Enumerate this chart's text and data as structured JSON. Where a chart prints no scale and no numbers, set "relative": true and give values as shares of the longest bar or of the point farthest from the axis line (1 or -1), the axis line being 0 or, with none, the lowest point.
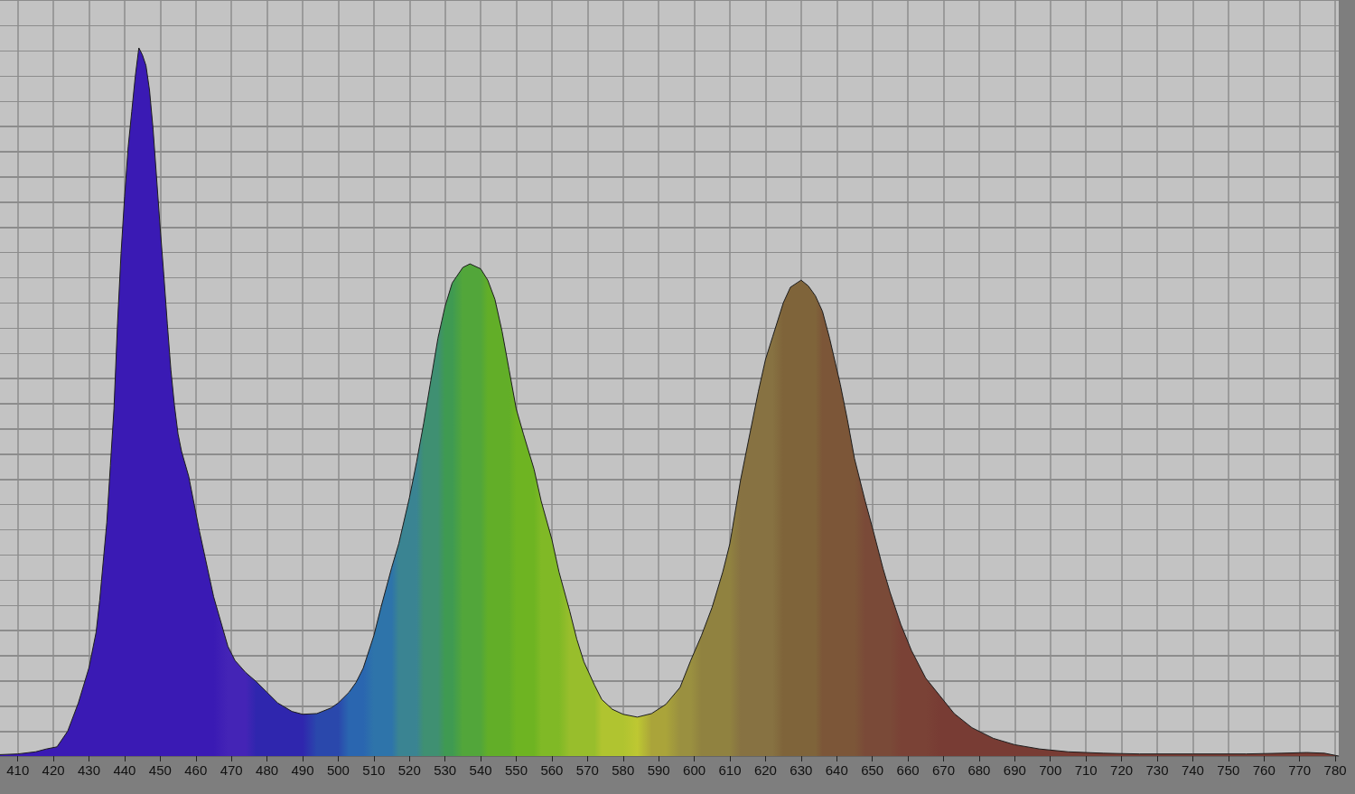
{
  "chart_data": {
    "type": "area",
    "relative": true,
    "grid": true,
    "marker": "none",
    "tick_labels": "x",
    "xlim": [
      405,
      781
    ],
    "xticks": [
      410,
      420,
      430,
      440,
      450,
      460,
      470,
      480,
      490,
      500,
      510,
      520,
      530,
      540,
      550,
      560,
      570,
      580,
      590,
      600,
      610,
      620,
      630,
      640,
      650,
      660,
      670,
      680,
      690,
      700,
      710,
      720,
      730,
      740,
      750,
      760,
      770,
      780
    ],
    "x": [
      405,
      410,
      415,
      418,
      421,
      424,
      427,
      430,
      432,
      433,
      435,
      436,
      437,
      438,
      439,
      440,
      441,
      442,
      443,
      444,
      445,
      446,
      447,
      448,
      449,
      450,
      451,
      452,
      453,
      454,
      455,
      456,
      458,
      461,
      465,
      469,
      471,
      474,
      477,
      480,
      483,
      487,
      490,
      494,
      498,
      500,
      503,
      505,
      507,
      510,
      512,
      515,
      517,
      520,
      522,
      524,
      526,
      528,
      530,
      532,
      535,
      537,
      540,
      542,
      544,
      546,
      548,
      550,
      552,
      555,
      557,
      560,
      562,
      565,
      567,
      569,
      572,
      574,
      577,
      580,
      584,
      588,
      592,
      596,
      599,
      602,
      605,
      608,
      610,
      613,
      615,
      618,
      620,
      622,
      625,
      627,
      630,
      632,
      634,
      636,
      638,
      641,
      643,
      645,
      648,
      650,
      653,
      655,
      658,
      661,
      665,
      669,
      673,
      678,
      684,
      690,
      697,
      705,
      715,
      725,
      740,
      755,
      765,
      772,
      777,
      781
    ],
    "values": [
      0.002,
      0.003,
      0.006,
      0.01,
      0.013,
      0.035,
      0.075,
      0.125,
      0.175,
      0.22,
      0.33,
      0.41,
      0.49,
      0.61,
      0.71,
      0.79,
      0.86,
      0.91,
      0.96,
      1,
      0.99,
      0.975,
      0.94,
      0.885,
      0.815,
      0.745,
      0.68,
      0.61,
      0.545,
      0.495,
      0.455,
      0.43,
      0.395,
      0.318,
      0.225,
      0.155,
      0.135,
      0.118,
      0.105,
      0.09,
      0.075,
      0.063,
      0.059,
      0.06,
      0.068,
      0.075,
      0.09,
      0.104,
      0.124,
      0.17,
      0.21,
      0.266,
      0.3,
      0.365,
      0.415,
      0.47,
      0.53,
      0.59,
      0.635,
      0.668,
      0.69,
      0.695,
      0.688,
      0.672,
      0.645,
      0.6,
      0.545,
      0.49,
      0.455,
      0.405,
      0.36,
      0.306,
      0.26,
      0.205,
      0.165,
      0.133,
      0.1,
      0.08,
      0.066,
      0.059,
      0.055,
      0.06,
      0.073,
      0.097,
      0.135,
      0.17,
      0.21,
      0.26,
      0.3,
      0.39,
      0.44,
      0.515,
      0.56,
      0.592,
      0.64,
      0.662,
      0.672,
      0.664,
      0.65,
      0.628,
      0.59,
      0.525,
      0.475,
      0.42,
      0.36,
      0.323,
      0.265,
      0.231,
      0.186,
      0.149,
      0.11,
      0.085,
      0.06,
      0.04,
      0.025,
      0.016,
      0.01,
      0.006,
      0.004,
      0.003,
      0.003,
      0.003,
      0.004,
      0.005,
      0.004,
      0
    ],
    "color": "#1c1c1c",
    "colors": [
      "#3a1ab4",
      "#3a1ab4",
      "#3a1ab4",
      "#3a1ab4",
      "#3a1ab4",
      "#3a1ab4",
      "#3a1ab4",
      "#3a1ab4",
      "#3a1ab4",
      "#3a1ab4",
      "#3a1ab4",
      "#3a1ab4",
      "#3a1ab4",
      "#3a1ab4",
      "#3a1ab4",
      "#3a1ab4",
      "#3a1ab4",
      "#3a1ab4",
      "#3a1ab4",
      "#3a1ab4",
      "#3a1ab4",
      "#3a1ab4",
      "#3a1ab4",
      "#3a1ab4",
      "#3a1ab4",
      "#3a1ab4",
      "#3a1ab4",
      "#3a1ab4",
      "#3a1ab4",
      "#3a1ab4",
      "#3a1ab4",
      "#3a1ab4",
      "#3a1ab4",
      "#3a1ab4",
      "#3a1ab4",
      "#4424b6",
      "#4424b6",
      "#4424b6",
      "#2f26ae",
      "#2f26ae",
      "#2f26ae",
      "#2f26ae",
      "#2f26ae",
      "#2a48ac",
      "#2a48ac",
      "#2a48ac",
      "#2a66b0",
      "#2a66b0",
      "#2a66b0",
      "#2e74aa",
      "#2e74aa",
      "#2e74aa",
      "#3a8492",
      "#3a8492",
      "#3a8492",
      "#3f9072",
      "#3f9072",
      "#3f9072",
      "#3f9a52",
      "#3f9a52",
      "#52a63a",
      "#52a63a",
      "#52a63a",
      "#62ae28",
      "#62ae28",
      "#62ae28",
      "#62ae28",
      "#6eb422",
      "#6eb422",
      "#6eb422",
      "#80b926",
      "#80b926",
      "#80b926",
      "#98be2c",
      "#98be2c",
      "#98be2c",
      "#98be2c",
      "#b0c430",
      "#b0c430",
      "#b0c430",
      "#bec832",
      "#aaa43a",
      "#aaa43a",
      "#9a9040",
      "#9a9040",
      "#908240",
      "#908240",
      "#908240",
      "#908240",
      "#877242",
      "#877242",
      "#877242",
      "#877242",
      "#877242",
      "#7f643a",
      "#7f643a",
      "#7f643a",
      "#7f643a",
      "#7f643a",
      "#7c5638",
      "#7c5638",
      "#7c5638",
      "#7c5638",
      "#7c5638",
      "#7a4a38",
      "#7a4a38",
      "#7a4a38",
      "#7a4a38",
      "#7a4236",
      "#7a4236",
      "#7a4236",
      "#783c34",
      "#783c34",
      "#783c34",
      "#783c34",
      "#783c34",
      "#783c34",
      "#783c34",
      "#783c34",
      "#783c34",
      "#783c34",
      "#783c34",
      "#783c34",
      "#783c34",
      "#783c34",
      "#783c34"
    ]
  }
}
